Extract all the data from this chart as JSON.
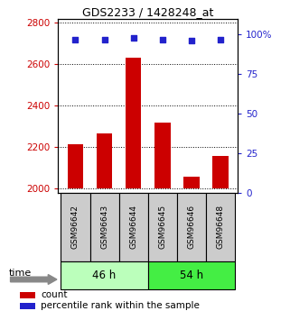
{
  "title": "GDS2233 / 1428248_at",
  "categories": [
    "GSM96642",
    "GSM96643",
    "GSM96644",
    "GSM96645",
    "GSM96646",
    "GSM96648"
  ],
  "bar_values": [
    2215,
    2265,
    2630,
    2320,
    2060,
    2160
  ],
  "percentile_values": [
    97,
    97,
    98,
    97,
    96,
    97
  ],
  "ylim_left": [
    1980,
    2820
  ],
  "ylim_right": [
    0,
    110
  ],
  "yticks_left": [
    2000,
    2200,
    2400,
    2600,
    2800
  ],
  "yticks_right": [
    0,
    25,
    50,
    75,
    100
  ],
  "yticklabels_right": [
    "0",
    "25",
    "50",
    "75",
    "100%"
  ],
  "bar_color": "#cc0000",
  "scatter_color": "#2222cc",
  "group1_label": "46 h",
  "group2_label": "54 h",
  "group1_color": "#bbffbb",
  "group2_color": "#44ee44",
  "xticklabel_bg": "#cccccc",
  "left_axis_color": "#cc0000",
  "right_axis_color": "#2222cc",
  "legend_count_label": "count",
  "legend_pct_label": "percentile rank within the sample",
  "time_label": "time",
  "base_value": 2000
}
